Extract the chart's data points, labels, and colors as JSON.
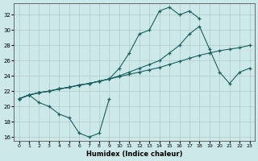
{
  "xlabel": "Humidex (Indice chaleur)",
  "background_color": "#cce8e8",
  "grid_color": "#b0c8c8",
  "line_color": "#1a6060",
  "xlim": [
    -0.5,
    23.5
  ],
  "ylim": [
    15.5,
    33.5
  ],
  "xticks": [
    0,
    1,
    2,
    3,
    4,
    5,
    6,
    7,
    8,
    9,
    10,
    11,
    12,
    13,
    14,
    15,
    16,
    17,
    18,
    19,
    20,
    21,
    22,
    23
  ],
  "yticks": [
    16,
    18,
    20,
    22,
    24,
    26,
    28,
    30,
    32
  ],
  "line1_x": [
    0,
    1,
    2,
    3,
    4,
    5,
    6,
    7,
    8,
    9,
    10,
    11,
    12,
    13,
    14,
    15,
    16,
    17,
    18,
    19,
    20,
    21,
    22,
    23
  ],
  "line1_y": [
    21.0,
    21.5,
    21.8,
    22.0,
    22.3,
    22.5,
    22.8,
    23.0,
    23.3,
    23.6,
    23.9,
    24.2,
    24.5,
    24.8,
    25.1,
    25.5,
    25.9,
    26.3,
    26.7,
    27.0,
    27.3,
    27.5,
    27.7,
    28.0
  ],
  "line2_x": [
    0,
    1,
    2,
    3,
    4,
    5,
    6,
    7,
    8,
    9,
    10,
    11,
    12,
    13,
    14,
    15,
    16,
    17,
    18,
    19,
    20,
    21,
    22,
    23
  ],
  "line2_y": [
    21.0,
    21.5,
    21.8,
    22.0,
    22.3,
    22.5,
    22.8,
    23.0,
    23.3,
    23.6,
    24.0,
    24.5,
    25.0,
    25.5,
    26.0,
    27.0,
    28.0,
    29.5,
    30.5,
    27.5,
    24.5,
    23.0,
    24.5,
    25.0
  ],
  "line3_x": [
    0,
    1,
    2,
    3,
    4,
    5,
    6,
    7,
    8,
    9,
    10,
    11,
    12,
    13,
    14,
    15,
    16,
    17,
    18
  ],
  "line3_y": [
    21.0,
    21.5,
    21.8,
    22.0,
    22.3,
    22.5,
    22.8,
    23.0,
    23.3,
    23.6,
    25.0,
    27.0,
    29.5,
    30.0,
    32.5,
    33.0,
    32.0,
    32.5,
    31.5
  ],
  "line4_x": [
    0,
    1,
    2,
    3,
    4,
    5,
    6,
    7,
    8,
    9
  ],
  "line4_y": [
    21.0,
    21.5,
    20.5,
    20.0,
    19.0,
    18.5,
    16.5,
    16.0,
    16.5,
    21.0
  ]
}
